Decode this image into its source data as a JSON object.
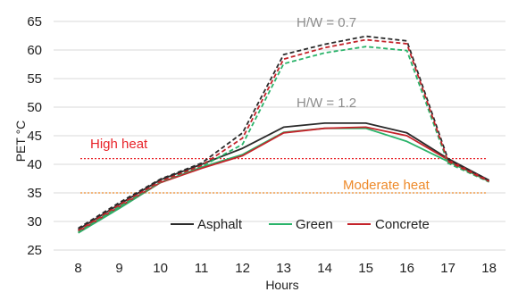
{
  "chart_data": {
    "type": "line",
    "xlabel": "Hours",
    "ylabel": "PET °C",
    "x": [
      8,
      9,
      10,
      11,
      12,
      13,
      14,
      15,
      16,
      17,
      18
    ],
    "xticks": [
      "8",
      "9",
      "10",
      "11",
      "12",
      "13",
      "14",
      "15",
      "16",
      "17",
      "18"
    ],
    "yticks": [
      "25",
      "30",
      "35",
      "40",
      "45",
      "50",
      "55",
      "60",
      "65"
    ],
    "xlim": [
      7.4,
      18.4
    ],
    "ylim": [
      25,
      65
    ],
    "grid": "horizontal",
    "legend_position": "bottom-center",
    "series": [
      {
        "name": "Asphalt",
        "group": "H/W = 1.2",
        "dash": "solid",
        "color": "#2a2a2a",
        "values": [
          28.6,
          33.0,
          37.3,
          40.0,
          42.8,
          46.5,
          47.2,
          47.2,
          45.5,
          41.0,
          37.2
        ]
      },
      {
        "name": "Green",
        "group": "H/W = 1.2",
        "dash": "solid",
        "color": "#2ab36a",
        "values": [
          28.0,
          32.3,
          36.8,
          39.5,
          41.7,
          45.6,
          46.3,
          46.3,
          44.0,
          40.5,
          37.0
        ]
      },
      {
        "name": "Concrete",
        "group": "H/W = 1.2",
        "dash": "solid",
        "color": "#c4232a",
        "values": [
          28.2,
          32.6,
          36.8,
          39.3,
          41.5,
          45.5,
          46.3,
          46.5,
          45.0,
          40.8,
          37.1
        ]
      },
      {
        "name": "Asphalt",
        "group": "H/W = 0.7",
        "dash": "dashed",
        "color": "#2a2a2a",
        "values": [
          28.8,
          33.3,
          37.4,
          40.2,
          45.5,
          59.2,
          61.0,
          62.4,
          61.6,
          40.9,
          37.2
        ]
      },
      {
        "name": "Green",
        "group": "H/W = 0.7",
        "dash": "dashed",
        "color": "#2ab36a",
        "values": [
          28.2,
          32.6,
          36.9,
          39.6,
          43.5,
          57.6,
          59.5,
          60.6,
          59.9,
          40.2,
          36.9
        ]
      },
      {
        "name": "Concrete",
        "group": "H/W = 0.7",
        "dash": "dashed",
        "color": "#c4232a",
        "values": [
          28.4,
          32.9,
          37.0,
          39.8,
          44.6,
          58.4,
          60.4,
          61.8,
          61.1,
          40.5,
          37.0
        ]
      }
    ],
    "reference_lines": [
      {
        "label": "High heat",
        "y": 41,
        "color": "#e8242a"
      },
      {
        "label": "Moderate heat",
        "y": 35,
        "color": "#ee8a2a"
      }
    ],
    "annotations": [
      "H/W = 0.7",
      "H/W = 1.2"
    ],
    "legend": [
      "Asphalt",
      "Green",
      "Concrete"
    ]
  }
}
